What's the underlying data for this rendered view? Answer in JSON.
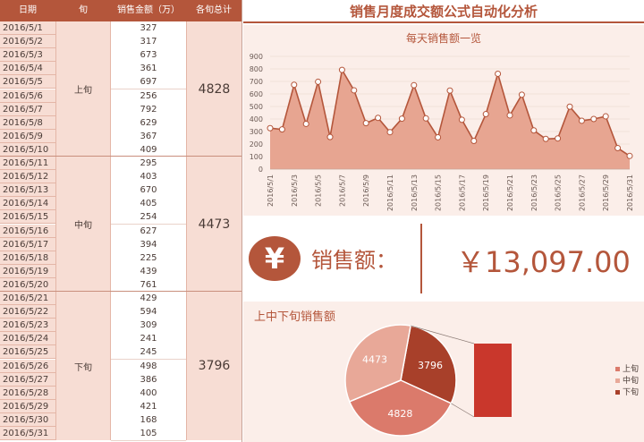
{
  "table": {
    "headers": {
      "date": "日期",
      "xun": "旬",
      "amount": "销售金额（万）",
      "total": "各旬总计"
    },
    "groups": [
      {
        "name": "上旬",
        "total": "4828",
        "rows": [
          [
            "2016/5/1",
            "327"
          ],
          [
            "2016/5/2",
            "317"
          ],
          [
            "2016/5/3",
            "673"
          ],
          [
            "2016/5/4",
            "361"
          ],
          [
            "2016/5/5",
            "697"
          ],
          [
            "2016/5/6",
            "256"
          ],
          [
            "2016/5/7",
            "792"
          ],
          [
            "2016/5/8",
            "629"
          ],
          [
            "2016/5/9",
            "367"
          ],
          [
            "2016/5/10",
            "409"
          ]
        ]
      },
      {
        "name": "中旬",
        "total": "4473",
        "rows": [
          [
            "2016/5/11",
            "295"
          ],
          [
            "2016/5/12",
            "403"
          ],
          [
            "2016/5/13",
            "670"
          ],
          [
            "2016/5/14",
            "405"
          ],
          [
            "2016/5/15",
            "254"
          ],
          [
            "2016/5/16",
            "627"
          ],
          [
            "2016/5/17",
            "394"
          ],
          [
            "2016/5/18",
            "225"
          ],
          [
            "2016/5/19",
            "439"
          ],
          [
            "2016/5/20",
            "761"
          ]
        ]
      },
      {
        "name": "下旬",
        "total": "3796",
        "rows": [
          [
            "2016/5/21",
            "429"
          ],
          [
            "2016/5/22",
            "594"
          ],
          [
            "2016/5/23",
            "309"
          ],
          [
            "2016/5/24",
            "241"
          ],
          [
            "2016/5/25",
            "245"
          ],
          [
            "2016/5/26",
            "498"
          ],
          [
            "2016/5/27",
            "386"
          ],
          [
            "2016/5/28",
            "400"
          ],
          [
            "2016/5/29",
            "421"
          ],
          [
            "2016/5/30",
            "168"
          ],
          [
            "2016/5/31",
            "105"
          ]
        ]
      }
    ]
  },
  "dashboard": {
    "title": "销售月度成交额公式自动化分析",
    "sales_label": "销售额：",
    "yen_symbol": "¥",
    "sales_value": "￥13,097.00",
    "accent_color": "#b4563b"
  },
  "chart_data": [
    {
      "type": "area",
      "title": "每天销售额一览",
      "x": [
        "2016/5/1",
        "2016/5/2",
        "2016/5/3",
        "2016/5/4",
        "2016/5/5",
        "2016/5/6",
        "2016/5/7",
        "2016/5/8",
        "2016/5/9",
        "2016/5/10",
        "2016/5/11",
        "2016/5/12",
        "2016/5/13",
        "2016/5/14",
        "2016/5/15",
        "2016/5/16",
        "2016/5/17",
        "2016/5/18",
        "2016/5/19",
        "2016/5/20",
        "2016/5/21",
        "2016/5/22",
        "2016/5/23",
        "2016/5/24",
        "2016/5/25",
        "2016/5/26",
        "2016/5/27",
        "2016/5/28",
        "2016/5/29",
        "2016/5/30",
        "2016/5/31"
      ],
      "x_tick_labels": [
        "2016/5/1",
        "2016/5/3",
        "2016/5/5",
        "2016/5/7",
        "2016/5/9",
        "2016/5/11",
        "2016/5/13",
        "2016/5/15",
        "2016/5/17",
        "2016/5/19",
        "2016/5/21",
        "2016/5/23",
        "2016/5/25",
        "2016/5/27",
        "2016/5/29",
        "2016/5/31"
      ],
      "values": [
        327,
        317,
        673,
        361,
        697,
        256,
        792,
        629,
        367,
        409,
        295,
        403,
        670,
        405,
        254,
        627,
        394,
        225,
        439,
        761,
        429,
        594,
        309,
        241,
        245,
        498,
        386,
        400,
        421,
        168,
        105
      ],
      "ylim": [
        0,
        900
      ],
      "y_ticks": [
        "0",
        "100",
        "200",
        "300",
        "400",
        "500",
        "600",
        "700",
        "800",
        "900"
      ],
      "grid": true
    },
    {
      "type": "pie",
      "title": "上中下旬销售额",
      "categories": [
        "上旬",
        "中旬",
        "下旬"
      ],
      "values": [
        4828,
        4473,
        3796
      ],
      "labels": [
        "4828",
        "4473",
        "3796"
      ],
      "colors": [
        "#db7a6b",
        "#e8a898",
        "#a8402a"
      ],
      "legend": "right",
      "bar_color": "#c9372c"
    }
  ]
}
